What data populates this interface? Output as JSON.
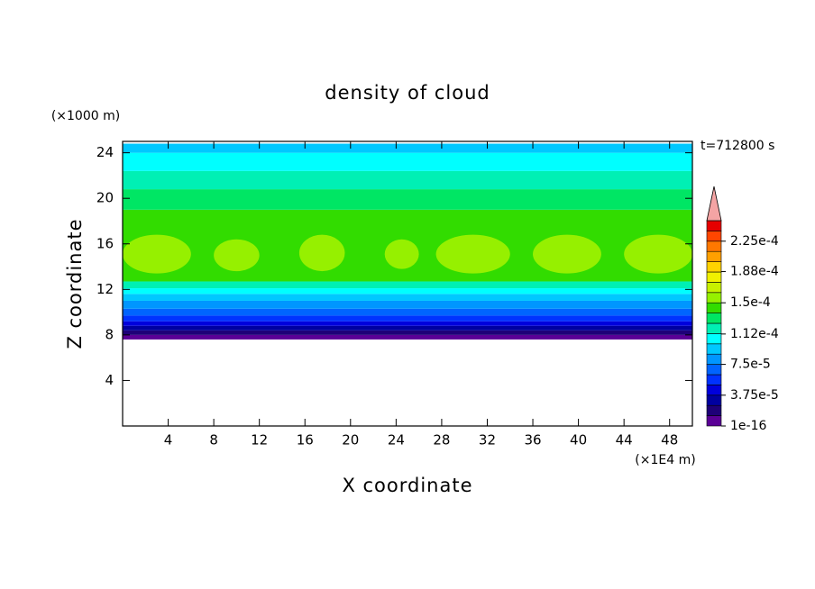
{
  "chart_data": {
    "type": "contour",
    "title": "density of cloud",
    "xlabel": "X coordinate",
    "ylabel": "Z coordinate",
    "x_unit": "(×1E4 m)",
    "y_unit": "(×1000 m)",
    "annotation": "t=712800 s",
    "xlim": [
      0,
      50
    ],
    "ylim": [
      0,
      25
    ],
    "xticks": [
      4,
      8,
      12,
      16,
      20,
      24,
      28,
      32,
      36,
      40,
      44,
      48
    ],
    "yticks": [
      4,
      8,
      12,
      16,
      20,
      24
    ],
    "z": [
      7.6,
      8.0,
      8.4,
      8.8,
      9.2,
      9.7,
      10.3,
      11.0,
      11.6,
      12.1,
      12.7,
      19.0,
      20.8,
      22.4,
      24.0,
      24.8
    ],
    "values": [
      6e-06,
      1.9e-05,
      3.1e-05,
      4.4e-05,
      5.6e-05,
      6.9e-05,
      8.1e-05,
      9.4e-05,
      0.000106,
      0.000119,
      0.000144,
      0.000131,
      0.000119,
      0.000106,
      9.4e-05
    ],
    "patches": [
      {
        "x": [
          0,
          6
        ],
        "z": [
          13.4,
          16.8
        ],
        "value": 0.000156
      },
      {
        "x": [
          8,
          12
        ],
        "z": [
          13.6,
          16.4
        ],
        "value": 0.000156
      },
      {
        "x": [
          15.5,
          19.5
        ],
        "z": [
          13.6,
          16.8
        ],
        "value": 0.000156
      },
      {
        "x": [
          23,
          26
        ],
        "z": [
          13.8,
          16.4
        ],
        "value": 0.000156
      },
      {
        "x": [
          27.5,
          34
        ],
        "z": [
          13.4,
          16.8
        ],
        "value": 0.000156
      },
      {
        "x": [
          36,
          42
        ],
        "z": [
          13.4,
          16.8
        ],
        "value": 0.000156
      },
      {
        "x": [
          44,
          50
        ],
        "z": [
          13.4,
          16.8
        ],
        "value": 0.000156
      }
    ],
    "clim": [
      0,
      0.00025
    ],
    "colors": [
      "#5a0096",
      "#1e0078",
      "#0000a0",
      "#0000dc",
      "#0032ff",
      "#0064ff",
      "#0096ff",
      "#00c8ff",
      "#00ffff",
      "#00f0b4",
      "#00e664",
      "#32dc00",
      "#96f000",
      "#c8f000",
      "#f0f000",
      "#ffd200",
      "#ffa000",
      "#ff7800",
      "#ff4600",
      "#e60000"
    ],
    "extend_color": "#f4a4a4",
    "cticks": [
      {
        "value": 1e-16,
        "label": "1e-16"
      },
      {
        "value": 3.75e-05,
        "label": "3.75e-5"
      },
      {
        "value": 7.5e-05,
        "label": "7.5e-5"
      },
      {
        "value": 0.000112,
        "label": "1.12e-4"
      },
      {
        "value": 0.00015,
        "label": "1.5e-4"
      },
      {
        "value": 0.000188,
        "label": "1.88e-4"
      },
      {
        "value": 0.000225,
        "label": "2.25e-4"
      }
    ]
  }
}
